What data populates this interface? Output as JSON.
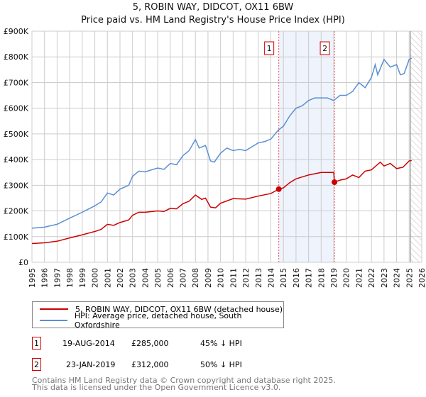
{
  "title": "5, ROBIN WAY, DIDCOT, OX11 6BW",
  "subtitle": "Price paid vs. HM Land Registry's House Price Index (HPI)",
  "colors": {
    "property": "#cc0000",
    "hpi": "#5b8fd4",
    "shade": "#eef3fc"
  },
  "chart_data": {
    "type": "line",
    "xlim": [
      1995,
      2026
    ],
    "ylim": [
      0,
      900000
    ],
    "x_ticks": [
      "1995",
      "1996",
      "1997",
      "1998",
      "1999",
      "2000",
      "2001",
      "2002",
      "2003",
      "2004",
      "2005",
      "2006",
      "2007",
      "2008",
      "2009",
      "2010",
      "2011",
      "2012",
      "2013",
      "2014",
      "2015",
      "2016",
      "2017",
      "2018",
      "2019",
      "2020",
      "2021",
      "2022",
      "2023",
      "2024",
      "2025",
      "2026"
    ],
    "y_ticks": [
      "£0",
      "£100K",
      "£200K",
      "£300K",
      "£400K",
      "£500K",
      "£600K",
      "£700K",
      "£800K",
      "£900K"
    ],
    "grid": true,
    "forecast_hatch_from": 2025.1,
    "series": [
      {
        "name": "5, ROBIN WAY, DIDCOT, OX11 6BW (detached house)",
        "x": [
          1995,
          1996,
          1997,
          1998,
          1999,
          2000,
          2000.5,
          2001,
          2001.5,
          2002,
          2002.7,
          2003,
          2003.5,
          2004,
          2005,
          2005.5,
          2006,
          2006.5,
          2007,
          2007.5,
          2008,
          2008.5,
          2008.8,
          2009.2,
          2009.6,
          2010,
          2011,
          2012,
          2013,
          2014,
          2014.63,
          2015,
          2015.5,
          2016,
          2017,
          2018,
          2019.0,
          2019.06,
          2019.5,
          2020,
          2020.5,
          2021,
          2021.5,
          2022,
          2022.7,
          2023,
          2023.5,
          2024,
          2024.5,
          2025,
          2025.2
        ],
        "y": [
          73000,
          76000,
          82000,
          95000,
          107000,
          120000,
          128000,
          148000,
          144000,
          155000,
          165000,
          183000,
          195000,
          195000,
          200000,
          198000,
          210000,
          208000,
          228000,
          238000,
          262000,
          245000,
          250000,
          215000,
          212000,
          230000,
          248000,
          246000,
          258000,
          268000,
          285000,
          290000,
          310000,
          325000,
          340000,
          350000,
          350000,
          312000,
          320000,
          325000,
          340000,
          330000,
          355000,
          360000,
          390000,
          375000,
          385000,
          365000,
          370000,
          395000,
          396000
        ]
      },
      {
        "name": "HPI: Average price, detached house, South Oxfordshire",
        "x": [
          1995,
          1996,
          1997,
          1998,
          1999,
          2000,
          2000.5,
          2001,
          2001.5,
          2002,
          2002.7,
          2003,
          2003.5,
          2004,
          2004.5,
          2005,
          2005.5,
          2006,
          2006.5,
          2007,
          2007.5,
          2008,
          2008.3,
          2008.8,
          2009.2,
          2009.5,
          2010,
          2010.5,
          2011,
          2011.5,
          2012,
          2012.5,
          2013,
          2013.5,
          2014,
          2014.6,
          2015,
          2015.5,
          2016,
          2016.5,
          2017,
          2017.5,
          2018,
          2018.5,
          2019,
          2019.5,
          2020,
          2020.5,
          2021,
          2021.5,
          2022,
          2022.3,
          2022.5,
          2023,
          2023.5,
          2024,
          2024.3,
          2024.6,
          2025,
          2025.2
        ],
        "y": [
          133000,
          137000,
          148000,
          172000,
          195000,
          220000,
          235000,
          270000,
          262000,
          285000,
          300000,
          335000,
          355000,
          352000,
          360000,
          367000,
          362000,
          385000,
          380000,
          415000,
          435000,
          478000,
          445000,
          455000,
          395000,
          390000,
          425000,
          445000,
          435000,
          440000,
          435000,
          450000,
          465000,
          470000,
          480000,
          515000,
          530000,
          570000,
          600000,
          610000,
          630000,
          640000,
          640000,
          640000,
          630000,
          650000,
          650000,
          665000,
          700000,
          680000,
          720000,
          770000,
          730000,
          790000,
          760000,
          770000,
          730000,
          735000,
          790000,
          795000
        ]
      }
    ],
    "sales": [
      {
        "label": "1",
        "x": 2014.63,
        "y": 285000
      },
      {
        "label": "2",
        "x": 2019.06,
        "y": 312000
      }
    ]
  },
  "legend": {
    "property": "5, ROBIN WAY, DIDCOT, OX11 6BW (detached house)",
    "hpi": "HPI: Average price, detached house, South Oxfordshire"
  },
  "transactions": [
    {
      "num": "1",
      "date": "19-AUG-2014",
      "price": "£285,000",
      "delta": "45% ↓ HPI"
    },
    {
      "num": "2",
      "date": "23-JAN-2019",
      "price": "£312,000",
      "delta": "50% ↓ HPI"
    }
  ],
  "footer": [
    "Contains HM Land Registry data © Crown copyright and database right 2025.",
    "This data is licensed under the Open Government Licence v3.0."
  ]
}
